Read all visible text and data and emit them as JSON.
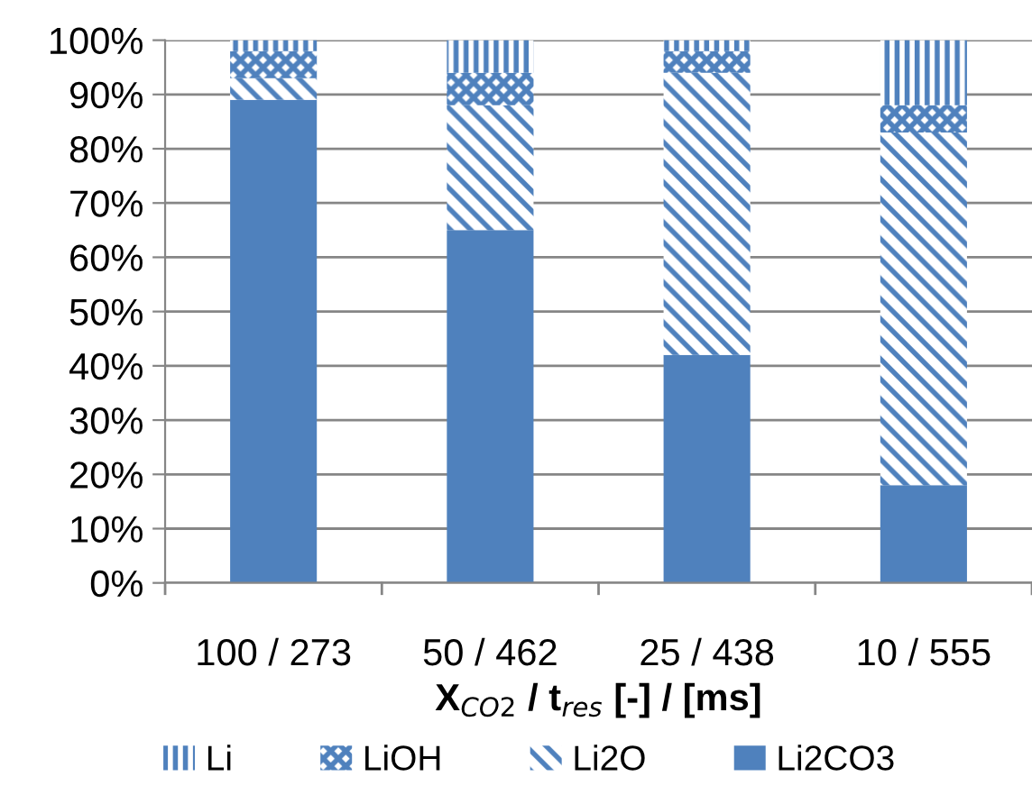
{
  "chart_data": {
    "type": "bar",
    "stacked": true,
    "categories": [
      "100 / 273",
      "50 / 462",
      "25 / 438",
      "10 / 555"
    ],
    "xlabel": "X$_{CO2}$ / t$_{res}$ [-] / [ms]",
    "series": [
      {
        "name": "Li2CO3",
        "color": "#4f81bd",
        "values": [
          89,
          65,
          42,
          18
        ]
      },
      {
        "name": "Li2O",
        "color": "#4f81bd",
        "values": [
          4,
          23,
          52,
          65
        ]
      },
      {
        "name": "LiOH",
        "color": "#4f81bd",
        "values": [
          5,
          6,
          4,
          5
        ]
      },
      {
        "name": "Li",
        "color": "#4f81bd",
        "values": [
          2,
          6,
          2,
          12
        ]
      }
    ],
    "ylim": [
      0,
      100
    ],
    "yticks": [
      {
        "value": 0,
        "label": "0%"
      },
      {
        "value": 10,
        "label": "10%"
      },
      {
        "value": 20,
        "label": "20%"
      },
      {
        "value": 30,
        "label": "30%"
      },
      {
        "value": 40,
        "label": "40%"
      },
      {
        "value": 50,
        "label": "50%"
      },
      {
        "value": 60,
        "label": "60%"
      },
      {
        "value": 70,
        "label": "70%"
      },
      {
        "value": 80,
        "label": "80%"
      },
      {
        "value": 90,
        "label": "90%"
      },
      {
        "value": 100,
        "label": "100%"
      }
    ],
    "grid": "y",
    "legend": "bottom"
  }
}
